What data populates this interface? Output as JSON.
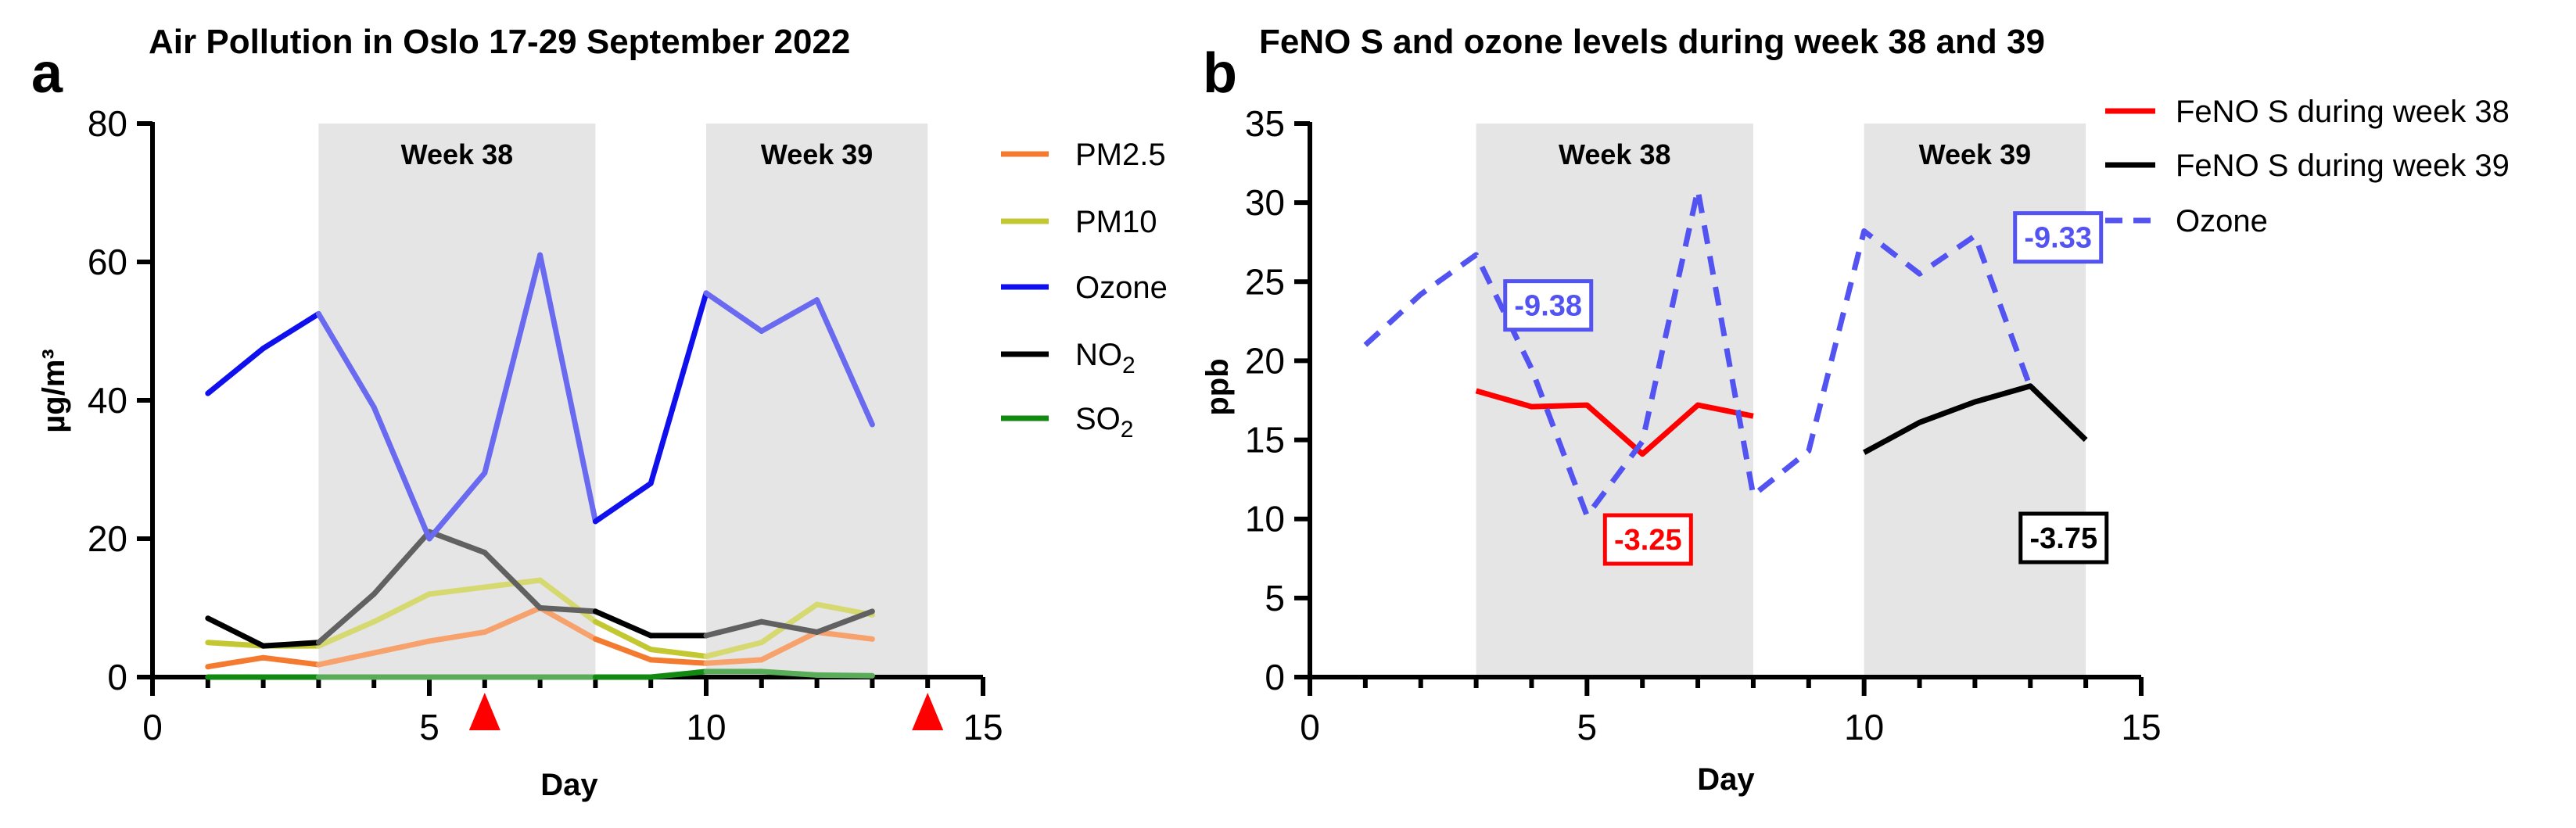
{
  "chart_data": [
    {
      "type": "line",
      "panel_label": "a",
      "title": "Air Pollution in Oslo 17-29 September 2022",
      "xlabel": "Day",
      "ylabel": "µg/m³",
      "xlim": [
        0,
        15
      ],
      "ylim": [
        0,
        80
      ],
      "xticks": [
        "0",
        "5",
        "10",
        "15"
      ],
      "yticks": [
        "0",
        "20",
        "40",
        "60",
        "80"
      ],
      "shaded_regions": [
        {
          "label": "Week 38",
          "x": [
            3,
            8
          ]
        },
        {
          "label": "Week 39",
          "x": [
            10,
            14
          ]
        }
      ],
      "markers": [
        6,
        14
      ],
      "marker_color": "#ff0000",
      "x": [
        1,
        2,
        3,
        4,
        5,
        6,
        7,
        8,
        9,
        10,
        11,
        12,
        13
      ],
      "series": [
        {
          "name": "PM2.5",
          "color": "#f47a2f",
          "values": [
            1.5,
            2.8,
            1.8,
            3.5,
            5.2,
            6.5,
            10,
            5.5,
            2.5,
            2,
            2.5,
            6.5,
            5.5
          ]
        },
        {
          "name": "PM10",
          "color": "#c3c832",
          "values": [
            5,
            4.5,
            4.5,
            8,
            12,
            13,
            14,
            8,
            4,
            3,
            5,
            10.5,
            9
          ]
        },
        {
          "name": "Ozone",
          "color": "#1010ee",
          "values": [
            41,
            47.5,
            52.5,
            39,
            20,
            29.5,
            61,
            22.5,
            28,
            55.5,
            50,
            54.5,
            36.5
          ]
        },
        {
          "name": "NO2",
          "color": "#000000",
          "values": [
            8.5,
            4.5,
            5,
            12,
            21,
            18,
            10,
            9.5,
            6,
            6,
            8,
            6.5,
            9.5
          ]
        },
        {
          "name": "SO2",
          "color": "#128a12",
          "values": [
            0,
            0,
            0,
            0,
            0,
            0,
            0,
            0,
            0,
            0.8,
            0.8,
            0.3,
            0.2
          ]
        }
      ],
      "legend": [
        "PM2.5",
        "PM10",
        "Ozone",
        "NO",
        "SO"
      ],
      "legend_subscript": "2"
    },
    {
      "type": "line",
      "panel_label": "b",
      "title": "FeNO S and ozone levels during week 38 and 39",
      "xlabel": "Day",
      "ylabel": "ppb",
      "xlim": [
        0,
        15
      ],
      "ylim": [
        0,
        35
      ],
      "xticks": [
        "0",
        "5",
        "10",
        "15"
      ],
      "yticks": [
        "0",
        "5",
        "10",
        "15",
        "20",
        "25",
        "30",
        "35"
      ],
      "shaded_regions": [
        {
          "label": "Week 38",
          "x": [
            3,
            8
          ]
        },
        {
          "label": "Week 39",
          "x": [
            10,
            14
          ]
        }
      ],
      "series": [
        {
          "name": "FeNO S during week 38",
          "color": "#ff0000",
          "style": "solid",
          "x": [
            3,
            4,
            5,
            6,
            7,
            8
          ],
          "values": [
            18.1,
            17.1,
            17.2,
            14.1,
            17.2,
            16.5
          ]
        },
        {
          "name": "FeNO S during week 39",
          "color": "#000000",
          "style": "solid",
          "x": [
            10,
            11,
            12,
            13,
            14
          ],
          "values": [
            14.2,
            16.1,
            17.4,
            18.4,
            15
          ]
        },
        {
          "name": "Ozone",
          "color": "#5353f2",
          "style": "dashed",
          "x": [
            1,
            2,
            3,
            4,
            5,
            6,
            7,
            8,
            9,
            10,
            11,
            12,
            13
          ],
          "values": [
            21,
            24.2,
            26.7,
            19.5,
            10.2,
            14.9,
            30.8,
            11.5,
            14.3,
            28.2,
            25.5,
            27.9,
            18.3
          ]
        }
      ],
      "annotations": [
        {
          "text": "-9.38",
          "color": "#5353f2",
          "x": 4.3,
          "y": 23.5
        },
        {
          "text": "-3.25",
          "color": "#ff0000",
          "x": 6.1,
          "y": 8.7
        },
        {
          "text": "-9.33",
          "color": "#5353f2",
          "x": 13.5,
          "y": 27.8
        },
        {
          "text": "-3.75",
          "color": "#000000",
          "x": 13.6,
          "y": 8.8
        }
      ],
      "legend": [
        "FeNO S during week 38",
        "FeNO S during week 39",
        "Ozone"
      ]
    }
  ]
}
